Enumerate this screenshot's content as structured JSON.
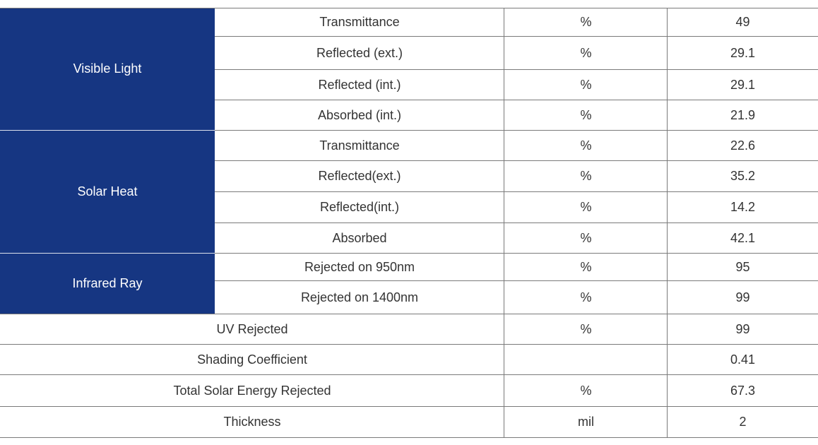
{
  "colors": {
    "category_bg": "#163682",
    "category_text": "#ffffff",
    "text": "#333333",
    "border": "#7a7a7a"
  },
  "groups": [
    {
      "label": "Visible Light",
      "rows": [
        {
          "property": "Transmittance",
          "unit": "%",
          "value": "49"
        },
        {
          "property": "Reflected (ext.)",
          "unit": "%",
          "value": "29.1"
        },
        {
          "property": "Reflected (int.)",
          "unit": "%",
          "value": "29.1"
        },
        {
          "property": "Absorbed (int.)",
          "unit": "%",
          "value": "21.9"
        }
      ]
    },
    {
      "label": "Solar Heat",
      "rows": [
        {
          "property": "Transmittance",
          "unit": "%",
          "value": "22.6"
        },
        {
          "property": "Reflected(ext.)",
          "unit": "%",
          "value": "35.2"
        },
        {
          "property": "Reflected(int.)",
          "unit": "%",
          "value": "14.2"
        },
        {
          "property": "Absorbed",
          "unit": "%",
          "value": "42.1"
        }
      ]
    },
    {
      "label": "Infrared Ray",
      "rows": [
        {
          "property": "Rejected on 950nm",
          "unit": "%",
          "value": "95"
        },
        {
          "property": "Rejected on 1400nm",
          "unit": "%",
          "value": "99"
        }
      ]
    }
  ],
  "single_rows": [
    {
      "property": "UV Rejected",
      "unit": "%",
      "value": "99"
    },
    {
      "property": "Shading Coefficient",
      "unit": "",
      "value": "0.41"
    },
    {
      "property": "Total Solar Energy Rejected",
      "unit": "%",
      "value": "67.3"
    },
    {
      "property": "Thickness",
      "unit": "mil",
      "value": "2"
    }
  ]
}
